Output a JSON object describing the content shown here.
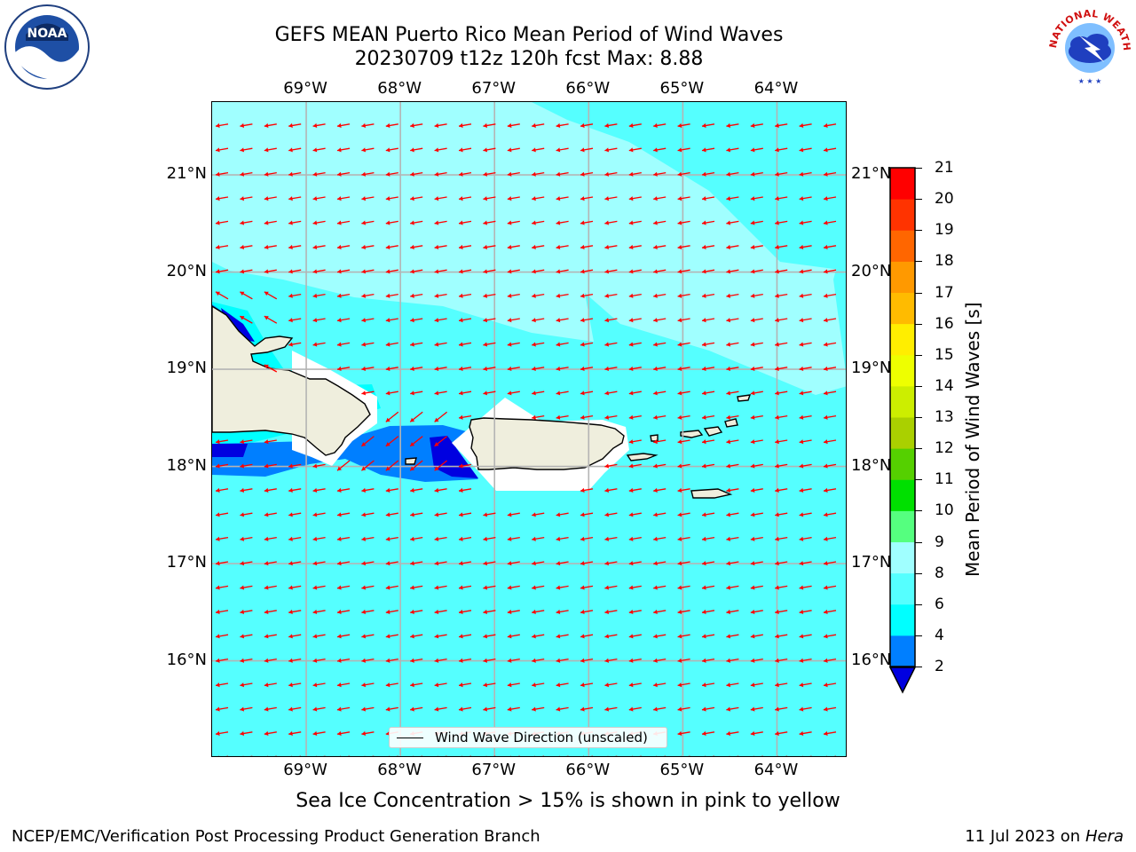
{
  "title": {
    "line1": "GEFS MEAN Puerto Rico Mean Period of Wind Waves",
    "line2": "20230709 t12z 120h fcst   Max: 8.88"
  },
  "logos": {
    "left": "NOAA",
    "right": "NATIONAL WEATHER SERVICE"
  },
  "map": {
    "lon_labels": [
      "69°W",
      "68°W",
      "67°W",
      "66°W",
      "65°W",
      "64°W"
    ],
    "lat_labels": [
      "21°N",
      "20°N",
      "19°N",
      "18°N",
      "17°N",
      "16°N"
    ],
    "extent": {
      "lon": [
        -70.0,
        -63.25
      ],
      "lat": [
        15.0,
        21.75
      ]
    },
    "colors": {
      "ocean": "#55ffff",
      "light": "#a0ffff",
      "cyan": "#00ffff",
      "blue": "#007fff",
      "dark": "#0000e0",
      "land": "#efeedd",
      "arrow": "#ff0000",
      "grid": "#b4b4b4"
    },
    "arrow_direction": "toward west",
    "legend_label": "Wind Wave Direction (unscaled)"
  },
  "colorbar": {
    "label": "Mean Period of Wind Waves [s]",
    "ticks": [
      2,
      4,
      6,
      8,
      9,
      10,
      11,
      12,
      13,
      14,
      15,
      16,
      17,
      18,
      19,
      20,
      21
    ],
    "colors": [
      "#0000e0",
      "#007fff",
      "#00ffff",
      "#55ffff",
      "#a0ffff",
      "#55ff7f",
      "#00e000",
      "#55d000",
      "#aad000",
      "#ccee00",
      "#eeff00",
      "#ffee00",
      "#ffbb00",
      "#ff9900",
      "#ff6600",
      "#ff3300",
      "#ff0000"
    ]
  },
  "subcaption": "Sea Ice Concentration > 15% is shown in pink to yellow",
  "footer": {
    "left": "NCEP/EMC/Verification Post Processing Product Generation Branch",
    "date": "11 Jul 2023 on",
    "host": "Hera"
  }
}
